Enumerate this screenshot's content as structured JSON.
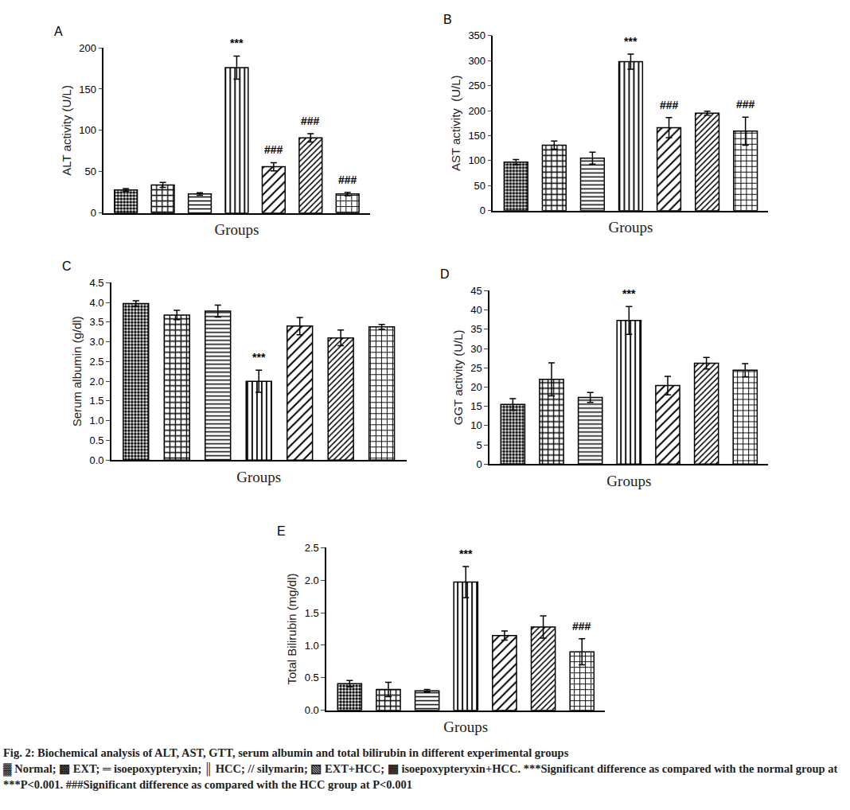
{
  "chart_data": [
    {
      "type": "bar",
      "title": "A",
      "x_label": "Groups",
      "y_label": "ALT activity (U/L)",
      "categories": [
        null,
        null,
        null,
        null,
        null,
        null,
        null
      ],
      "values": [
        28,
        34,
        23,
        176,
        56,
        91,
        23
      ],
      "errors": [
        1.5,
        3,
        1.5,
        14,
        5,
        5,
        2
      ],
      "color": "#ffffff",
      "grid": false,
      "ylim": [
        0,
        200
      ],
      "yticks": [
        0,
        50,
        100,
        150,
        200
      ],
      "annotations": [
        {
          "category": 3,
          "text": "***"
        },
        {
          "category": 4,
          "text": "###"
        },
        {
          "category": 5,
          "text": "###"
        },
        {
          "category": 6,
          "text": "###"
        }
      ]
    },
    {
      "type": "bar",
      "title": "B",
      "x_label": "Groups",
      "y_label": "AST activity  (U/L)",
      "categories": [
        null,
        null,
        null,
        null,
        null,
        null,
        null
      ],
      "values": [
        97,
        131,
        105,
        298,
        166,
        195,
        159
      ],
      "errors": [
        5,
        8,
        12,
        15,
        20,
        4,
        28
      ],
      "color": "#ffffff",
      "grid": false,
      "ylim": [
        0,
        350
      ],
      "yticks": [
        0,
        50,
        100,
        150,
        200,
        250,
        300,
        350
      ],
      "annotations": [
        {
          "category": 3,
          "text": "***"
        },
        {
          "category": 4,
          "text": "###"
        },
        {
          "category": 6,
          "text": "###"
        }
      ]
    },
    {
      "type": "bar",
      "title": "C",
      "x_label": "Groups",
      "y_label": "Serum albumin (g/dl)",
      "categories": [
        null,
        null,
        null,
        null,
        null,
        null,
        null
      ],
      "values": [
        3.97,
        3.68,
        3.78,
        2.0,
        3.4,
        3.1,
        3.38
      ],
      "errors": [
        0.07,
        0.12,
        0.15,
        0.28,
        0.22,
        0.2,
        0.06
      ],
      "color": "#ffffff",
      "grid": false,
      "ylim": [
        0,
        4.5
      ],
      "yticks": [
        {
          "value": 0,
          "label": "0.0"
        },
        0.5,
        {
          "value": 1,
          "label": "1.0"
        },
        1.5,
        {
          "value": 2,
          "label": "2.0"
        },
        2.5,
        {
          "value": 3,
          "label": "3.0"
        },
        3.5,
        {
          "value": 4,
          "label": "4.0"
        },
        4.5
      ],
      "annotations": [
        {
          "category": 3,
          "text": "***"
        }
      ]
    },
    {
      "type": "bar",
      "title": "D",
      "x_label": "Groups",
      "y_label": "GGT activity (U/L)",
      "categories": [
        null,
        null,
        null,
        null,
        null,
        null,
        null
      ],
      "values": [
        15.5,
        22,
        17.3,
        37.3,
        20.4,
        26.2,
        24.4
      ],
      "errors": [
        1.5,
        4.3,
        1.3,
        3.6,
        2.4,
        1.5,
        1.7
      ],
      "color": "#ffffff",
      "grid": false,
      "ylim": [
        0,
        45
      ],
      "yticks": [
        0,
        5,
        10,
        15,
        20,
        25,
        30,
        35,
        40,
        45
      ],
      "annotations": [
        {
          "category": 3,
          "text": "***"
        }
      ]
    },
    {
      "type": "bar",
      "title": "E",
      "x_label": "Groups",
      "y_label": "Total Bilirubin (mg/dl)",
      "categories": [
        null,
        null,
        null,
        null,
        null,
        null,
        null
      ],
      "values": [
        0.41,
        0.32,
        0.3,
        1.97,
        1.15,
        1.28,
        0.9
      ],
      "errors": [
        0.05,
        0.11,
        0.02,
        0.24,
        0.07,
        0.17,
        0.2
      ],
      "color": "#ffffff",
      "grid": false,
      "ylim": [
        0,
        2.5
      ],
      "yticks": [
        {
          "value": 0,
          "label": "0.0"
        },
        0.5,
        {
          "value": 1,
          "label": "1.0"
        },
        1.5,
        {
          "value": 2,
          "label": "2.0"
        },
        2.5
      ],
      "annotations": [
        {
          "category": 3,
          "text": "***"
        },
        {
          "category": 6,
          "text": "###"
        }
      ]
    }
  ],
  "caption": {
    "title": "Fig. 2: Biochemical analysis of ALT, AST, GTT, serum albumin and total bilirubin in different experimental groups",
    "text": "▓ Normal; ▩ EXT; ═ isoepoxypteryxin; ║ HCC; // silymarin; ▧ EXT+HCC; ▦ isoepoxypteryxin+HCC. ***Significant difference as compared with the normal group at ***P<0.001. ###Significant difference as compared with the HCC group at P<0.001"
  }
}
